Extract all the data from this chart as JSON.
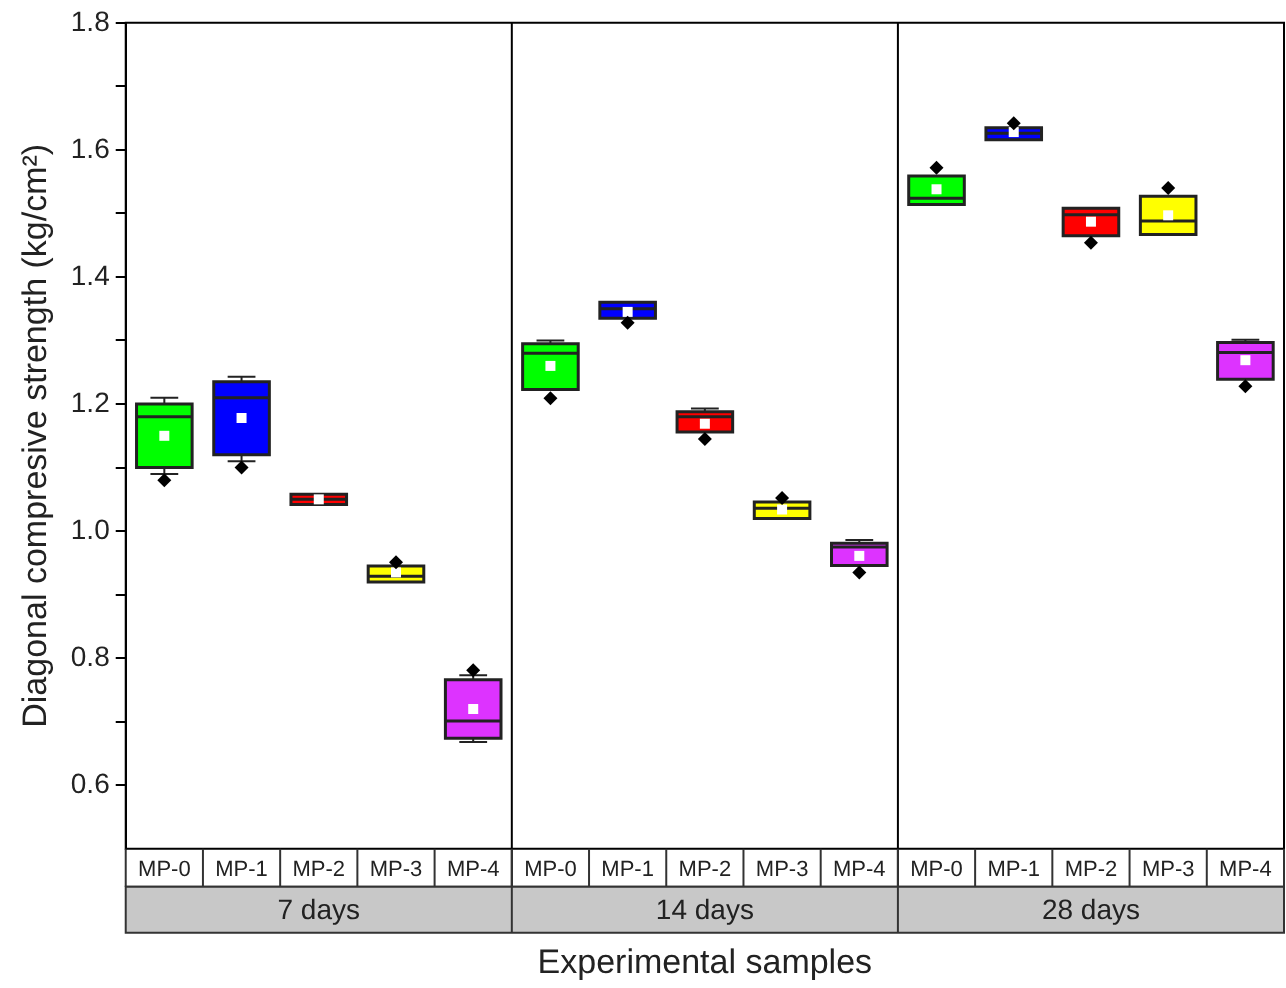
{
  "chart_data": {
    "type": "box",
    "xlabel": "Experimental samples",
    "ylabel": "Diagonal compresive strength (kg/cm²)",
    "categories": [
      "MP-0",
      "MP-1",
      "MP-2",
      "MP-3",
      "MP-4",
      "MP-0",
      "MP-1",
      "MP-2",
      "MP-3",
      "MP-4",
      "MP-0",
      "MP-1",
      "MP-2",
      "MP-3",
      "MP-4"
    ],
    "annotations": [
      "7 days",
      "14 days",
      "28 days"
    ],
    "colors": [
      "#00ff00",
      "#0000ff",
      "#ff0000",
      "#ffff00",
      "#dd33ff",
      "#00ff00",
      "#0000ff",
      "#ff0000",
      "#ffff00",
      "#dd33ff",
      "#00ff00",
      "#0000ff",
      "#ff0000",
      "#ffff00",
      "#dd33ff"
    ],
    "boxes": [
      {
        "low": 1.09,
        "q1": 1.1,
        "median": 1.18,
        "q3": 1.2,
        "high": 1.21,
        "mean": 1.15,
        "outliers": [
          1.08
        ]
      },
      {
        "low": 1.11,
        "q1": 1.12,
        "median": 1.21,
        "q3": 1.235,
        "high": 1.243,
        "mean": 1.178,
        "outliers": [
          1.1
        ]
      },
      {
        "low": 1.042,
        "q1": 1.042,
        "median": 1.05,
        "q3": 1.058,
        "high": 1.058,
        "mean": 1.05
      },
      {
        "low": 0.918,
        "q1": 0.92,
        "median": 0.929,
        "q3": 0.945,
        "high": 0.946,
        "mean": 0.935,
        "outliers": [
          0.951
        ]
      },
      {
        "low": 0.668,
        "q1": 0.674,
        "median": 0.701,
        "q3": 0.766,
        "high": 0.773,
        "mean": 0.72,
        "outliers": [
          0.781
        ]
      },
      {
        "low": 1.22,
        "q1": 1.223,
        "median": 1.28,
        "q3": 1.295,
        "high": 1.3,
        "mean": 1.26,
        "outliers": [
          1.209
        ]
      },
      {
        "low": 1.332,
        "q1": 1.335,
        "median": 1.35,
        "q3": 1.36,
        "high": 1.362,
        "mean": 1.345,
        "outliers": [
          1.328
        ]
      },
      {
        "low": 1.154,
        "q1": 1.156,
        "median": 1.18,
        "q3": 1.188,
        "high": 1.193,
        "mean": 1.169,
        "outliers": [
          1.145
        ]
      },
      {
        "low": 1.019,
        "q1": 1.02,
        "median": 1.036,
        "q3": 1.046,
        "high": 1.047,
        "mean": 1.034,
        "outliers": [
          1.052
        ]
      },
      {
        "low": 0.944,
        "q1": 0.946,
        "median": 0.975,
        "q3": 0.981,
        "high": 0.986,
        "mean": 0.961,
        "outliers": [
          0.935
        ]
      },
      {
        "low": 1.512,
        "q1": 1.514,
        "median": 1.524,
        "q3": 1.559,
        "high": 1.561,
        "mean": 1.538,
        "outliers": [
          1.572
        ]
      },
      {
        "low": 1.615,
        "q1": 1.616,
        "median": 1.626,
        "q3": 1.635,
        "high": 1.636,
        "mean": 1.628,
        "outliers": [
          1.642
        ]
      },
      {
        "low": 1.462,
        "q1": 1.465,
        "median": 1.498,
        "q3": 1.508,
        "high": 1.511,
        "mean": 1.487,
        "outliers": [
          1.454
        ]
      },
      {
        "low": 1.465,
        "q1": 1.467,
        "median": 1.488,
        "q3": 1.527,
        "high": 1.53,
        "mean": 1.497,
        "outliers": [
          1.54
        ]
      },
      {
        "low": 1.236,
        "q1": 1.239,
        "median": 1.281,
        "q3": 1.297,
        "high": 1.301,
        "mean": 1.269,
        "outliers": [
          1.228
        ]
      }
    ],
    "ylim": [
      0.5,
      1.8
    ],
    "yticks": [
      {
        "value": 0.6,
        "label": "0.6"
      },
      {
        "value": 0.7,
        "label": null
      },
      {
        "value": 0.8,
        "label": "0.8"
      },
      {
        "value": 0.9,
        "label": null
      },
      {
        "value": 1.0,
        "label": "1.0"
      },
      {
        "value": 1.1,
        "label": null
      },
      {
        "value": 1.2,
        "label": "1.2"
      },
      {
        "value": 1.3,
        "label": null
      },
      {
        "value": 1.4,
        "label": "1.4"
      },
      {
        "value": 1.5,
        "label": null
      },
      {
        "value": 1.6,
        "label": "1.6"
      },
      {
        "value": 1.7,
        "label": null
      },
      {
        "value": 1.8,
        "label": "1.8"
      }
    ],
    "grid": false,
    "legend": false,
    "marker": "square"
  }
}
